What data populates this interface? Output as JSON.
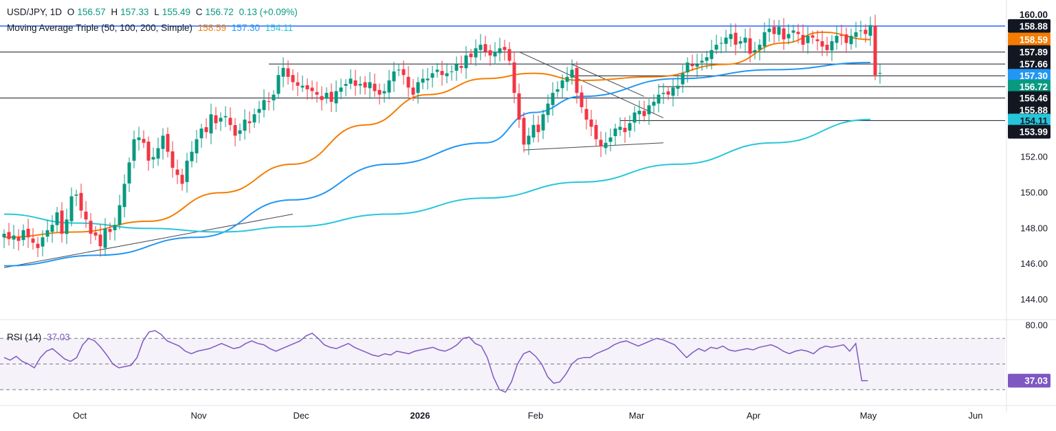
{
  "header": {
    "symbol": "USD/JPY, 1D",
    "o_label": "O",
    "o_value": "156.57",
    "h_label": "H",
    "h_value": "157.33",
    "l_label": "L",
    "l_value": "155.49",
    "c_label": "C",
    "c_value": "156.72",
    "change": "0.13 (+0.09%)",
    "ma_title": "Moving Average Triple (50, 100, 200, Simple)",
    "ma_50": "158.59",
    "ma_100": "157.30",
    "ma_200": "154.11"
  },
  "rsi_header": {
    "title": "RSI (14)",
    "value": "37.03"
  },
  "colors": {
    "up": "#089981",
    "down": "#f23645",
    "ma50": "#f57c00",
    "ma100": "#2196f3",
    "ma200": "#26c6da",
    "rsi": "#7e57c2",
    "hline_blue": "#2962ff",
    "level": "#131722"
  },
  "chart_data": [
    {
      "type": "candlestick",
      "title": "USD/JPY, 1D",
      "ylim": [
        143,
        160.5
      ],
      "y_ticks": [
        "160.00",
        "152.00",
        "150.00",
        "148.00",
        "146.00",
        "144.00"
      ],
      "x_ticks": [
        "Oct",
        "Nov",
        "Dec",
        "2026",
        "Feb",
        "Mar",
        "Apr",
        "May",
        "Jun"
      ],
      "price_badges": [
        {
          "label": "160.00",
          "value": 160.0,
          "style": "light"
        },
        {
          "label": "158.88",
          "value": 159.35,
          "style": "dark"
        },
        {
          "label": "158.59",
          "value": 158.59,
          "style": "orange"
        },
        {
          "label": "157.89",
          "value": 157.89,
          "style": "dark"
        },
        {
          "label": "157.66",
          "value": 157.22,
          "style": "dark"
        },
        {
          "label": "157.30",
          "value": 156.56,
          "style": "blue"
        },
        {
          "label": "156.72",
          "value": 155.95,
          "style": "teal"
        },
        {
          "label": "156.46",
          "value": 155.31,
          "style": "dark"
        },
        {
          "label": "155.88",
          "value": 154.65,
          "style": "dark"
        },
        {
          "label": "154.11",
          "value": 154.05,
          "style": "cyan"
        },
        {
          "label": "153.99",
          "value": 153.42,
          "style": "dark"
        }
      ],
      "ohlc_series": {
        "start_date": "2025-09-12",
        "close": [
          147.7,
          147.4,
          147.6,
          147.3,
          147.9,
          147.5,
          147.2,
          146.9,
          147.5,
          147.9,
          148.2,
          148.9,
          147.7,
          148.5,
          149.8,
          149.9,
          149.0,
          148.5,
          147.7,
          147.6,
          147.0,
          148.0,
          147.8,
          148.2,
          149.3,
          150.5,
          151.7,
          153.0,
          153.1,
          152.8,
          151.8,
          152.0,
          152.5,
          153.2,
          152.3,
          151.4,
          151.0,
          150.5,
          151.8,
          152.3,
          153.0,
          153.6,
          153.4,
          154.4,
          153.9,
          154.2,
          154.3,
          153.8,
          153.2,
          153.5,
          154.1,
          153.9,
          154.4,
          154.7,
          155.2,
          155.1,
          155.5,
          156.6,
          157.0,
          156.5,
          156.2,
          156.0,
          156.0,
          155.8,
          155.7,
          155.5,
          155.2,
          155.6,
          155.1,
          155.7,
          155.9,
          156.1,
          156.4,
          156.0,
          156.1,
          155.9,
          156.2,
          155.7,
          155.5,
          155.7,
          156.3,
          156.8,
          156.9,
          156.6,
          155.9,
          155.5,
          156.2,
          156.4,
          156.4,
          156.7,
          156.9,
          156.6,
          156.7,
          156.8,
          157.2,
          157.0,
          157.7,
          157.6,
          158.1,
          158.3,
          157.9,
          157.7,
          157.9,
          158.1,
          158.0,
          157.4,
          155.6,
          154.1,
          152.7,
          153.2,
          153.8,
          153.4,
          154.4,
          155.0,
          155.6,
          155.8,
          156.3,
          156.5,
          156.9,
          155.6,
          154.8,
          154.1,
          153.7,
          153.0,
          152.6,
          152.8,
          153.1,
          153.6,
          153.7,
          153.4,
          153.9,
          154.5,
          154.6,
          154.3,
          154.9,
          155.1,
          155.5,
          155.6,
          155.5,
          155.9,
          156.0,
          156.7,
          157.3,
          157.1,
          157.2,
          157.4,
          157.6,
          158.0,
          158.3,
          158.4,
          158.7,
          158.9,
          158.3,
          158.5,
          158.7,
          157.8,
          158.0,
          158.3,
          159.0,
          159.2,
          158.9,
          159.3,
          158.6,
          158.9,
          159.1,
          158.9,
          158.3,
          158.8,
          158.7,
          158.5,
          158.2,
          158.0,
          158.5,
          158.8,
          158.8,
          158.4,
          158.8,
          159.0,
          159.1,
          158.9,
          159.4,
          156.6,
          156.72
        ]
      },
      "moving_averages": [
        {
          "name": "MA 50",
          "last": 158.59,
          "points": [
            [
              0,
              147.5
            ],
            [
              15,
              147.8
            ],
            [
              30,
              148.4
            ],
            [
              45,
              150.0
            ],
            [
              60,
              151.6
            ],
            [
              75,
              153.8
            ],
            [
              88,
              155.5
            ],
            [
              100,
              156.4
            ],
            [
              110,
              156.7
            ],
            [
              120,
              156.3
            ],
            [
              135,
              156.5
            ],
            [
              150,
              157.2
            ],
            [
              162,
              158.4
            ],
            [
              170,
              159.0
            ],
            [
              180,
              158.59
            ]
          ]
        },
        {
          "name": "MA 100",
          "last": 157.3,
          "points": [
            [
              0,
              145.9
            ],
            [
              20,
              146.5
            ],
            [
              40,
              147.5
            ],
            [
              60,
              149.6
            ],
            [
              80,
              151.6
            ],
            [
              100,
              152.8
            ],
            [
              110,
              154.5
            ],
            [
              120,
              155.4
            ],
            [
              140,
              156.4
            ],
            [
              160,
              156.9
            ],
            [
              180,
              157.3
            ]
          ]
        },
        {
          "name": "MA 200",
          "last": 154.11,
          "points": [
            [
              0,
              148.8
            ],
            [
              15,
              148.3
            ],
            [
              30,
              148.0
            ],
            [
              45,
              147.8
            ],
            [
              60,
              148.1
            ],
            [
              80,
              148.8
            ],
            [
              100,
              149.7
            ],
            [
              120,
              150.6
            ],
            [
              140,
              151.6
            ],
            [
              160,
              152.8
            ],
            [
              180,
              154.11
            ]
          ]
        }
      ],
      "levels": [
        {
          "value": 159.35,
          "from_index": 0,
          "style": "blue"
        },
        {
          "value": 157.89,
          "from_index": 0
        },
        {
          "value": 157.22,
          "from_index": 55
        },
        {
          "value": 156.56,
          "from_index": 118
        },
        {
          "value": 155.95,
          "from_index": 136
        },
        {
          "value": 155.31,
          "from_index": 0
        },
        {
          "value": 154.05,
          "from_index": 128
        }
      ],
      "trendlines": [
        {
          "from": [
            0,
            145.8
          ],
          "to": [
            60,
            148.8
          ]
        },
        {
          "from": [
            107,
            157.9
          ],
          "to": [
            137,
            154.2
          ]
        },
        {
          "from": [
            118,
            157.2
          ],
          "to": [
            133,
            155.4
          ]
        },
        {
          "from": [
            108,
            152.4
          ],
          "to": [
            137,
            152.8
          ]
        }
      ]
    },
    {
      "type": "line",
      "title": "RSI (14)",
      "ylim": [
        24,
        83
      ],
      "y_ticks": [
        "80.00"
      ],
      "bands": [
        70,
        50,
        30
      ],
      "last": 37.03,
      "values": [
        55,
        53,
        56,
        52,
        50,
        47,
        55,
        60,
        62,
        58,
        54,
        52,
        55,
        65,
        70,
        68,
        63,
        57,
        50,
        47,
        48,
        49,
        55,
        68,
        75,
        76,
        73,
        68,
        66,
        64,
        60,
        58,
        60,
        61,
        62,
        64,
        66,
        64,
        62,
        63,
        66,
        68,
        66,
        65,
        62,
        60,
        62,
        64,
        66,
        68,
        72,
        74,
        70,
        65,
        63,
        62,
        64,
        66,
        63,
        61,
        59,
        57,
        56,
        58,
        57,
        60,
        59,
        58,
        60,
        61,
        62,
        63,
        61,
        60,
        62,
        65,
        70,
        71,
        66,
        64,
        55,
        40,
        30,
        28,
        36,
        50,
        58,
        60,
        56,
        50,
        40,
        35,
        36,
        42,
        50,
        54,
        55,
        55,
        58,
        60,
        62,
        65,
        67,
        68,
        66,
        64,
        66,
        68,
        70,
        69,
        67,
        65,
        60,
        55,
        59,
        62,
        60,
        63,
        62,
        64,
        61,
        60,
        61,
        62,
        61,
        63,
        64,
        65,
        63,
        60,
        58,
        60,
        61,
        60,
        58,
        62,
        64,
        63,
        64,
        65,
        60,
        66,
        37,
        37.03
      ]
    }
  ]
}
